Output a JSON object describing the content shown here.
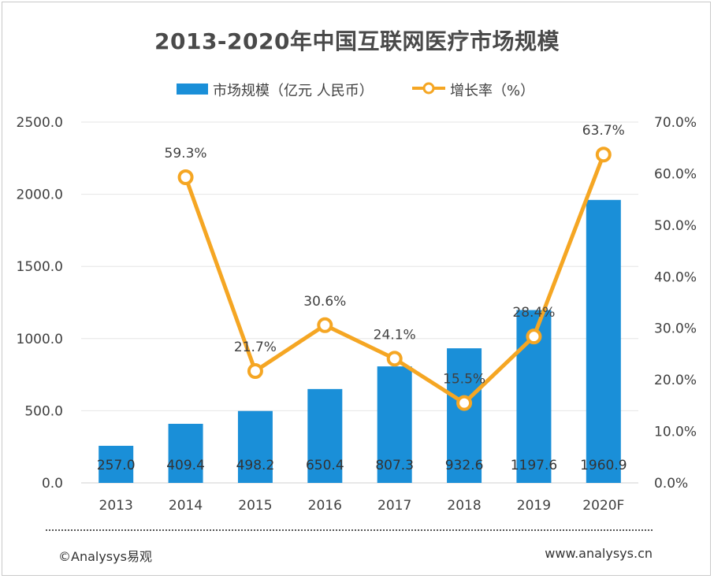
{
  "chart_data": {
    "type": "bar",
    "title": "2013-2020年中国互联网医疗市场规模",
    "categories": [
      "2013",
      "2014",
      "2015",
      "2016",
      "2017",
      "2018",
      "2019",
      "2020F"
    ],
    "series": [
      {
        "name": "市场规模（亿元 人民币）",
        "type": "bar",
        "axis": "left",
        "color": "#1a8fd8",
        "values": [
          257.0,
          409.4,
          498.2,
          650.4,
          807.3,
          932.6,
          1197.6,
          1960.9
        ],
        "labels": [
          "257.0",
          "409.4",
          "498.2",
          "650.4",
          "807.3",
          "932.6",
          "1197.6",
          "1960.9"
        ]
      },
      {
        "name": "增长率（%）",
        "type": "line",
        "axis": "right",
        "color": "#f5a623",
        "values": [
          null,
          59.3,
          21.7,
          30.6,
          24.1,
          15.5,
          28.4,
          63.7
        ],
        "labels": [
          "",
          "59.3%",
          "21.7%",
          "30.6%",
          "24.1%",
          "15.5%",
          "28.4%",
          "63.7%"
        ]
      }
    ],
    "y_left": {
      "min": 0,
      "max": 2500,
      "ticks": [
        "0.0",
        "500.0",
        "1000.0",
        "1500.0",
        "2000.0",
        "2500.0"
      ]
    },
    "y_right": {
      "min": 0,
      "max": 70,
      "ticks": [
        "0.0%",
        "10.0%",
        "20.0%",
        "30.0%",
        "40.0%",
        "50.0%",
        "60.0%",
        "70.0%"
      ]
    },
    "grid": true,
    "legend_position": "top"
  },
  "footer": {
    "copyright": "©Analysys易观",
    "website": "www.analysys.cn"
  }
}
